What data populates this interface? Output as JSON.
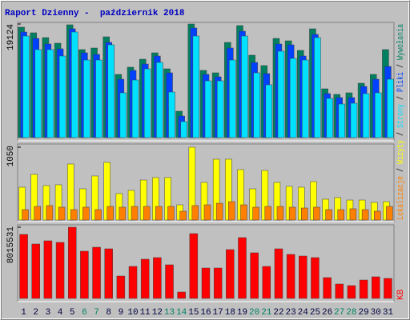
{
  "title": "Raport Dzienny -  październik 2018",
  "legend_separator": " / ",
  "chart_data": [
    {
      "type": "bar",
      "ylim": [
        0,
        19124
      ],
      "yticks": [
        19124
      ],
      "series": [
        {
          "name": "Wywołania",
          "color": "#008060",
          "values": [
            18586,
            17643,
            16834,
            15892,
            18990,
            14814,
            15084,
            16969,
            10640,
            11852,
            13198,
            14276,
            11582,
            4444,
            19124,
            11313,
            10909,
            16027,
            18855,
            13872,
            12121,
            16700,
            16296,
            14680,
            18316,
            8215,
            7272,
            7542,
            9158,
            10640,
            14814
          ]
        },
        {
          "name": "Pliki",
          "color": "#0040ff",
          "values": [
            17777,
            16700,
            15757,
            14949,
            18316,
            14276,
            14006,
            16027,
            9831,
            11313,
            12390,
            13737,
            10909,
            3636,
            18451,
            10640,
            10235,
            15084,
            17912,
            12659,
            10774,
            15757,
            15622,
            13737,
            17373,
            7407,
            6734,
            6734,
            8619,
            9831,
            11986
          ]
        },
        {
          "name": "Strony",
          "color": "#00e0ff",
          "values": [
            17104,
            14814,
            14814,
            13737,
            17777,
            13063,
            13063,
            15622,
            7542,
            9696,
            11582,
            12659,
            7676,
            2693,
            17104,
            9562,
            9562,
            13063,
            17104,
            10909,
            8888,
            14545,
            13333,
            13063,
            16834,
            6599,
            5656,
            5791,
            7407,
            7542,
            9831
          ]
        }
      ]
    },
    {
      "type": "bar",
      "ylim": [
        0,
        1050
      ],
      "yticks": [
        1050
      ],
      "series": [
        {
          "name": "Wizyty",
          "color": "#ffff00",
          "values": [
            473,
            658,
            496,
            508,
            808,
            450,
            635,
            831,
            381,
            427,
            577,
            612,
            612,
            219,
            1050,
            542,
            877,
            877,
            727,
            450,
            715,
            542,
            485,
            473,
            554,
            300,
            323,
            288,
            288,
            254,
            265
          ]
        },
        {
          "name": "Lokalizacje",
          "color": "#ff8000",
          "values": [
            150,
            196,
            208,
            185,
            150,
            185,
            150,
            196,
            185,
            196,
            196,
            196,
            196,
            127,
            208,
            219,
            242,
            265,
            219,
            185,
            196,
            196,
            185,
            173,
            185,
            150,
            150,
            162,
            150,
            127,
            196
          ]
        }
      ]
    },
    {
      "type": "bar",
      "ylim": [
        0,
        8015531
      ],
      "yticks": [
        8015531
      ],
      "categories": [
        "1",
        "2",
        "3",
        "4",
        "5",
        "6",
        "7",
        "8",
        "9",
        "10",
        "11",
        "12",
        "13",
        "14",
        "15",
        "16",
        "17",
        "18",
        "19",
        "20",
        "21",
        "22",
        "23",
        "24",
        "25",
        "26",
        "27",
        "28",
        "29",
        "30",
        "31"
      ],
      "label_colors": [
        "#000040",
        "#000040",
        "#000040",
        "#000040",
        "#000040",
        "#008060",
        "#008060",
        "#000040",
        "#000040",
        "#000040",
        "#000040",
        "#000040",
        "#008060",
        "#008060",
        "#000040",
        "#000040",
        "#000040",
        "#000040",
        "#000040",
        "#008060",
        "#008060",
        "#000040",
        "#000040",
        "#000040",
        "#000040",
        "#000040",
        "#008060",
        "#008060",
        "#000040",
        "#000040",
        "#000040"
      ],
      "series": [
        {
          "name": "KB",
          "color": "#ff0000",
          "values": [
            7204960,
            6124216,
            6484464,
            6304340,
            8015531,
            5313658,
            5763968,
            5583844,
            2521736,
            3602480,
            4413038,
            4593162,
            3782604,
            720496,
            7295022,
            3422356,
            3422356,
            5493782,
            6844712,
            5133534,
            3602480,
            5583844,
            4953410,
            4773286,
            4593162,
            2341612,
            1621116,
            1441000,
            2071426,
            2431674,
            2251550
          ]
        }
      ]
    }
  ]
}
